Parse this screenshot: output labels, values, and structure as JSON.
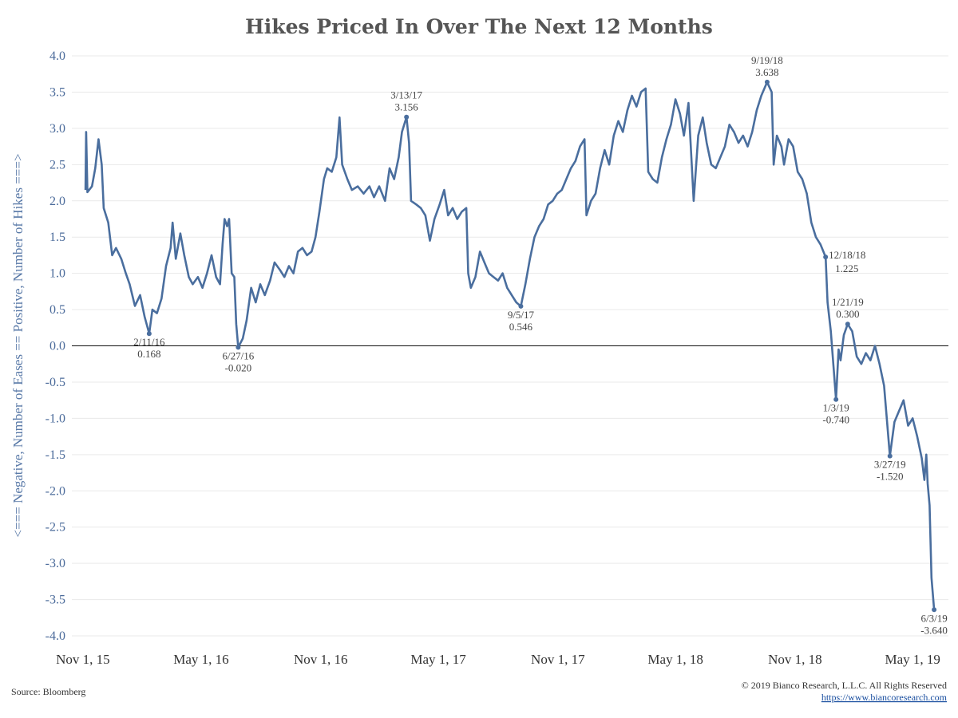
{
  "chart_data": {
    "type": "line",
    "title": "Hikes Priced In Over The Next 12 Months",
    "ylabel": "<=== Negative, Number of Eases == Positive, Number of Hikes ===>",
    "xlabel": "",
    "ylim": [
      -4.0,
      4.0
    ],
    "yticks": [
      "4.0",
      "3.5",
      "3.0",
      "2.5",
      "2.0",
      "1.5",
      "1.0",
      "0.5",
      "0.0",
      "-0.5",
      "-1.0",
      "-1.5",
      "-2.0",
      "-2.5",
      "-3.0",
      "-3.5",
      "-4.0"
    ],
    "xlim": [
      "2015-10-15",
      "2019-06-25"
    ],
    "xticks": [
      {
        "date": "2015-11-01",
        "label": "Nov 1, 15"
      },
      {
        "date": "2016-05-01",
        "label": "May 1, 16"
      },
      {
        "date": "2016-11-01",
        "label": "Nov 1, 16"
      },
      {
        "date": "2017-05-01",
        "label": "May 1, 17"
      },
      {
        "date": "2017-11-01",
        "label": "Nov 1, 17"
      },
      {
        "date": "2018-05-01",
        "label": "May 1, 18"
      },
      {
        "date": "2018-11-01",
        "label": "Nov 1, 18"
      },
      {
        "date": "2019-05-01",
        "label": "May 1, 19"
      }
    ],
    "grid": true,
    "series": [
      {
        "color": "#4a6e9e",
        "points": [
          [
            "2015-11-05",
            2.15
          ],
          [
            "2015-11-06",
            2.95
          ],
          [
            "2015-11-08",
            2.12
          ],
          [
            "2015-11-15",
            2.2
          ],
          [
            "2015-11-20",
            2.45
          ],
          [
            "2015-11-25",
            2.85
          ],
          [
            "2015-11-30",
            2.5
          ],
          [
            "2015-12-03",
            1.9
          ],
          [
            "2015-12-10",
            1.7
          ],
          [
            "2015-12-16",
            1.25
          ],
          [
            "2015-12-22",
            1.35
          ],
          [
            "2015-12-30",
            1.2
          ],
          [
            "2016-01-06",
            1.0
          ],
          [
            "2016-01-12",
            0.85
          ],
          [
            "2016-01-20",
            0.55
          ],
          [
            "2016-01-28",
            0.7
          ],
          [
            "2016-02-04",
            0.4
          ],
          [
            "2016-02-11",
            0.168
          ],
          [
            "2016-02-16",
            0.5
          ],
          [
            "2016-02-23",
            0.45
          ],
          [
            "2016-03-01",
            0.65
          ],
          [
            "2016-03-08",
            1.1
          ],
          [
            "2016-03-15",
            1.35
          ],
          [
            "2016-03-18",
            1.7
          ],
          [
            "2016-03-23",
            1.2
          ],
          [
            "2016-03-30",
            1.55
          ],
          [
            "2016-04-05",
            1.25
          ],
          [
            "2016-04-12",
            0.95
          ],
          [
            "2016-04-18",
            0.85
          ],
          [
            "2016-04-26",
            0.95
          ],
          [
            "2016-05-03",
            0.8
          ],
          [
            "2016-05-10",
            1.0
          ],
          [
            "2016-05-17",
            1.25
          ],
          [
            "2016-05-24",
            0.95
          ],
          [
            "2016-05-30",
            0.85
          ],
          [
            "2016-06-03",
            1.4
          ],
          [
            "2016-06-06",
            1.75
          ],
          [
            "2016-06-10",
            1.65
          ],
          [
            "2016-06-13",
            1.75
          ],
          [
            "2016-06-17",
            1.0
          ],
          [
            "2016-06-21",
            0.95
          ],
          [
            "2016-06-24",
            0.3
          ],
          [
            "2016-06-27",
            -0.02
          ],
          [
            "2016-07-04",
            0.1
          ],
          [
            "2016-07-10",
            0.35
          ],
          [
            "2016-07-17",
            0.8
          ],
          [
            "2016-07-24",
            0.6
          ],
          [
            "2016-07-31",
            0.85
          ],
          [
            "2016-08-07",
            0.7
          ],
          [
            "2016-08-15",
            0.9
          ],
          [
            "2016-08-22",
            1.15
          ],
          [
            "2016-08-30",
            1.05
          ],
          [
            "2016-09-06",
            0.95
          ],
          [
            "2016-09-13",
            1.1
          ],
          [
            "2016-09-20",
            1.0
          ],
          [
            "2016-09-27",
            1.3
          ],
          [
            "2016-10-04",
            1.35
          ],
          [
            "2016-10-11",
            1.25
          ],
          [
            "2016-10-18",
            1.3
          ],
          [
            "2016-10-24",
            1.5
          ],
          [
            "2016-10-30",
            1.85
          ],
          [
            "2016-11-06",
            2.3
          ],
          [
            "2016-11-11",
            2.45
          ],
          [
            "2016-11-18",
            2.4
          ],
          [
            "2016-11-25",
            2.6
          ],
          [
            "2016-11-30",
            3.15
          ],
          [
            "2016-12-04",
            2.5
          ],
          [
            "2016-12-12",
            2.3
          ],
          [
            "2016-12-19",
            2.15
          ],
          [
            "2016-12-28",
            2.2
          ],
          [
            "2017-01-06",
            2.1
          ],
          [
            "2017-01-15",
            2.2
          ],
          [
            "2017-01-22",
            2.05
          ],
          [
            "2017-01-30",
            2.2
          ],
          [
            "2017-02-08",
            2.0
          ],
          [
            "2017-02-15",
            2.45
          ],
          [
            "2017-02-22",
            2.3
          ],
          [
            "2017-03-01",
            2.6
          ],
          [
            "2017-03-06",
            2.95
          ],
          [
            "2017-03-13",
            3.156
          ],
          [
            "2017-03-17",
            2.8
          ],
          [
            "2017-03-20",
            2.0
          ],
          [
            "2017-03-28",
            1.95
          ],
          [
            "2017-04-04",
            1.9
          ],
          [
            "2017-04-11",
            1.8
          ],
          [
            "2017-04-18",
            1.45
          ],
          [
            "2017-04-25",
            1.75
          ],
          [
            "2017-05-03",
            1.95
          ],
          [
            "2017-05-10",
            2.15
          ],
          [
            "2017-05-16",
            1.8
          ],
          [
            "2017-05-23",
            1.9
          ],
          [
            "2017-05-30",
            1.75
          ],
          [
            "2017-06-06",
            1.85
          ],
          [
            "2017-06-13",
            1.9
          ],
          [
            "2017-06-16",
            1.0
          ],
          [
            "2017-06-20",
            0.8
          ],
          [
            "2017-06-27",
            0.95
          ],
          [
            "2017-07-04",
            1.3
          ],
          [
            "2017-07-11",
            1.15
          ],
          [
            "2017-07-18",
            1.0
          ],
          [
            "2017-07-25",
            0.95
          ],
          [
            "2017-08-01",
            0.9
          ],
          [
            "2017-08-08",
            1.0
          ],
          [
            "2017-08-15",
            0.8
          ],
          [
            "2017-08-22",
            0.7
          ],
          [
            "2017-08-29",
            0.6
          ],
          [
            "2017-09-05",
            0.546
          ],
          [
            "2017-09-12",
            0.85
          ],
          [
            "2017-09-19",
            1.2
          ],
          [
            "2017-09-26",
            1.5
          ],
          [
            "2017-10-03",
            1.65
          ],
          [
            "2017-10-10",
            1.75
          ],
          [
            "2017-10-17",
            1.95
          ],
          [
            "2017-10-24",
            2.0
          ],
          [
            "2017-10-31",
            2.1
          ],
          [
            "2017-11-07",
            2.15
          ],
          [
            "2017-11-14",
            2.3
          ],
          [
            "2017-11-21",
            2.45
          ],
          [
            "2017-11-28",
            2.55
          ],
          [
            "2017-12-05",
            2.75
          ],
          [
            "2017-12-12",
            2.85
          ],
          [
            "2017-12-15",
            1.8
          ],
          [
            "2017-12-22",
            2.0
          ],
          [
            "2017-12-29",
            2.1
          ],
          [
            "2018-01-05",
            2.45
          ],
          [
            "2018-01-12",
            2.7
          ],
          [
            "2018-01-19",
            2.5
          ],
          [
            "2018-01-26",
            2.9
          ],
          [
            "2018-02-02",
            3.1
          ],
          [
            "2018-02-09",
            2.95
          ],
          [
            "2018-02-16",
            3.25
          ],
          [
            "2018-02-23",
            3.45
          ],
          [
            "2018-03-02",
            3.3
          ],
          [
            "2018-03-09",
            3.5
          ],
          [
            "2018-03-16",
            3.55
          ],
          [
            "2018-03-20",
            2.4
          ],
          [
            "2018-03-27",
            2.3
          ],
          [
            "2018-04-03",
            2.25
          ],
          [
            "2018-04-10",
            2.6
          ],
          [
            "2018-04-17",
            2.85
          ],
          [
            "2018-04-24",
            3.05
          ],
          [
            "2018-05-01",
            3.4
          ],
          [
            "2018-05-08",
            3.2
          ],
          [
            "2018-05-14",
            2.9
          ],
          [
            "2018-05-21",
            3.35
          ],
          [
            "2018-05-29",
            2.0
          ],
          [
            "2018-06-05",
            2.9
          ],
          [
            "2018-06-12",
            3.15
          ],
          [
            "2018-06-18",
            2.8
          ],
          [
            "2018-06-25",
            2.5
          ],
          [
            "2018-07-02",
            2.45
          ],
          [
            "2018-07-09",
            2.6
          ],
          [
            "2018-07-16",
            2.75
          ],
          [
            "2018-07-23",
            3.05
          ],
          [
            "2018-07-30",
            2.95
          ],
          [
            "2018-08-06",
            2.8
          ],
          [
            "2018-08-13",
            2.9
          ],
          [
            "2018-08-20",
            2.75
          ],
          [
            "2018-08-27",
            2.95
          ],
          [
            "2018-09-03",
            3.25
          ],
          [
            "2018-09-10",
            3.45
          ],
          [
            "2018-09-19",
            3.638
          ],
          [
            "2018-09-26",
            3.5
          ],
          [
            "2018-09-29",
            2.5
          ],
          [
            "2018-10-04",
            2.9
          ],
          [
            "2018-10-11",
            2.75
          ],
          [
            "2018-10-15",
            2.5
          ],
          [
            "2018-10-22",
            2.85
          ],
          [
            "2018-10-29",
            2.75
          ],
          [
            "2018-11-05",
            2.4
          ],
          [
            "2018-11-12",
            2.3
          ],
          [
            "2018-11-19",
            2.1
          ],
          [
            "2018-11-26",
            1.7
          ],
          [
            "2018-12-03",
            1.5
          ],
          [
            "2018-12-10",
            1.4
          ],
          [
            "2018-12-18",
            1.225
          ],
          [
            "2018-12-21",
            0.6
          ],
          [
            "2018-12-26",
            0.2
          ],
          [
            "2019-01-03",
            -0.74
          ],
          [
            "2019-01-07",
            -0.05
          ],
          [
            "2019-01-10",
            -0.2
          ],
          [
            "2019-01-15",
            0.15
          ],
          [
            "2019-01-21",
            0.3
          ],
          [
            "2019-01-28",
            0.2
          ],
          [
            "2019-02-04",
            -0.15
          ],
          [
            "2019-02-11",
            -0.25
          ],
          [
            "2019-02-18",
            -0.1
          ],
          [
            "2019-02-25",
            -0.2
          ],
          [
            "2019-03-04",
            0.0
          ],
          [
            "2019-03-11",
            -0.25
          ],
          [
            "2019-03-18",
            -0.55
          ],
          [
            "2019-03-27",
            -1.52
          ],
          [
            "2019-04-03",
            -1.05
          ],
          [
            "2019-04-10",
            -0.9
          ],
          [
            "2019-04-17",
            -0.75
          ],
          [
            "2019-04-24",
            -1.1
          ],
          [
            "2019-05-01",
            -1.0
          ],
          [
            "2019-05-08",
            -1.25
          ],
          [
            "2019-05-15",
            -1.55
          ],
          [
            "2019-05-19",
            -1.85
          ],
          [
            "2019-05-22",
            -1.5
          ],
          [
            "2019-05-24",
            -1.9
          ],
          [
            "2019-05-27",
            -2.2
          ],
          [
            "2019-05-30",
            -3.2
          ],
          [
            "2019-06-03",
            -3.64
          ]
        ]
      }
    ],
    "annotations": [
      {
        "date": "2016-02-11",
        "value": 0.168,
        "label_date": "2/11/16",
        "label_value": "0.168",
        "pos": "below"
      },
      {
        "date": "2016-06-27",
        "value": -0.02,
        "label_date": "6/27/16",
        "label_value": "-0.020",
        "pos": "below"
      },
      {
        "date": "2017-03-13",
        "value": 3.156,
        "label_date": "3/13/17",
        "label_value": "3.156",
        "pos": "above"
      },
      {
        "date": "2017-09-05",
        "value": 0.546,
        "label_date": "9/5/17",
        "label_value": "0.546",
        "pos": "below"
      },
      {
        "date": "2018-09-19",
        "value": 3.638,
        "label_date": "9/19/18",
        "label_value": "3.638",
        "pos": "above"
      },
      {
        "date": "2018-12-18",
        "value": 1.225,
        "label_date": "12/18/18",
        "label_value": "1.225",
        "pos": "right"
      },
      {
        "date": "2019-01-21",
        "value": 0.3,
        "label_date": "1/21/19",
        "label_value": "0.300",
        "pos": "above"
      },
      {
        "date": "2019-01-03",
        "value": -0.74,
        "label_date": "1/3/19",
        "label_value": "-0.740",
        "pos": "below"
      },
      {
        "date": "2019-03-27",
        "value": -1.52,
        "label_date": "3/27/19",
        "label_value": "-1.520",
        "pos": "below"
      },
      {
        "date": "2019-06-03",
        "value": -3.64,
        "label_date": "6/3/19",
        "label_value": "-3.640",
        "pos": "below"
      }
    ]
  },
  "footer": {
    "source": "Source: Bloomberg",
    "copyright": "© 2019 Bianco Research, L.L.C. All Rights Reserved",
    "link": "https://www.biancoresearch.com"
  }
}
